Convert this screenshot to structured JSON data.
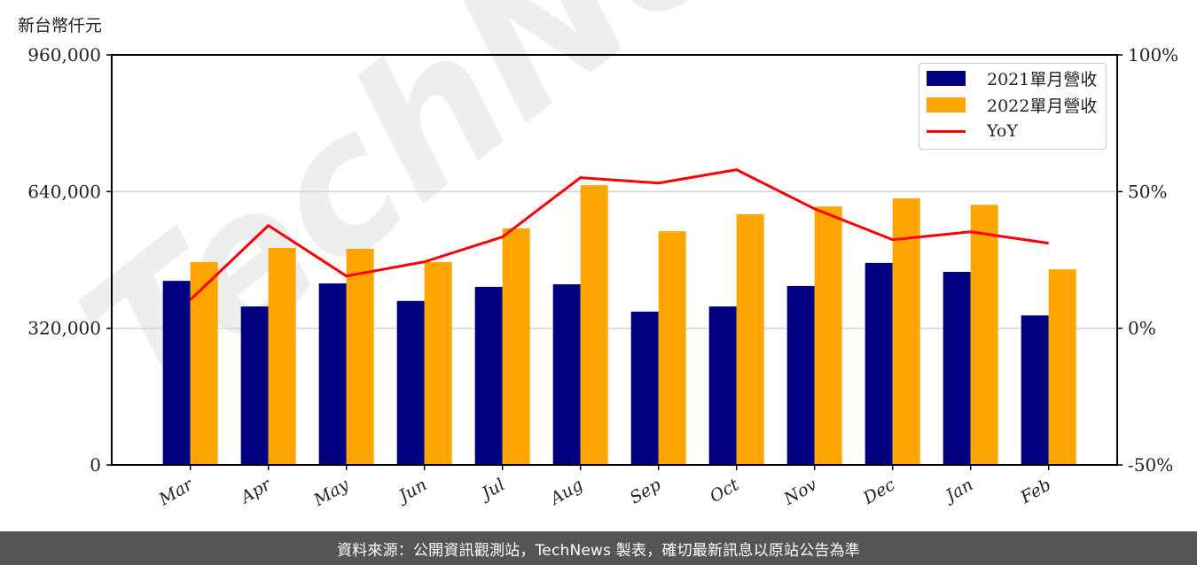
{
  "header": {
    "unit_label": "新台幣仟元"
  },
  "footer": {
    "source_text": "資料來源：公開資訊觀測站，TechNews 製表，確切最新訊息以原站公告為準"
  },
  "watermark": {
    "text": "TechNews"
  },
  "colors": {
    "series_2021": "#000080",
    "series_2022": "#ffa500",
    "yoy": "#ff0000",
    "grid": "#d3d3d3",
    "footer_bg": "#555555"
  },
  "legend": {
    "items": [
      {
        "label": "2021單月營收",
        "type": "bar",
        "color": "#000080"
      },
      {
        "label": "2022單月營收",
        "type": "bar",
        "color": "#ffa500"
      },
      {
        "label": "YoY",
        "type": "line",
        "color": "#ff0000"
      }
    ]
  },
  "chart_data": {
    "type": "bar",
    "title": "",
    "xlabel": "",
    "ylabel": "新台幣仟元",
    "y2label": "YoY",
    "categories": [
      "Mar",
      "Apr",
      "May",
      "Jun",
      "Jul",
      "Aug",
      "Sep",
      "Oct",
      "Nov",
      "Dec",
      "Jan",
      "Feb"
    ],
    "series": [
      {
        "name": "2021單月營收",
        "type": "bar",
        "axis": "left",
        "values": [
          431000,
          371000,
          425000,
          384000,
          417000,
          423000,
          359000,
          371000,
          419000,
          473000,
          452000,
          350000
        ]
      },
      {
        "name": "2022單月營收",
        "type": "bar",
        "axis": "left",
        "values": [
          475000,
          508000,
          506000,
          475000,
          554000,
          655000,
          547000,
          587000,
          605000,
          624000,
          609000,
          458000
        ]
      },
      {
        "name": "YoY",
        "type": "line",
        "axis": "right",
        "unit": "%",
        "values": [
          10.4,
          37.6,
          19.1,
          24.3,
          33.4,
          55.1,
          53.1,
          58.0,
          43.7,
          32.4,
          35.3,
          31.1
        ]
      }
    ],
    "ylim": [
      0,
      960000
    ],
    "y2lim": [
      -50,
      100
    ],
    "yticks": [
      0,
      320000,
      640000,
      960000
    ],
    "ytick_labels": [
      "0",
      "320,000",
      "640,000",
      "960,000"
    ],
    "y2ticks": [
      -50,
      0,
      50,
      100
    ],
    "y2tick_labels": [
      "-50%",
      "0%",
      "50%",
      "100%"
    ],
    "grid": "horizontal",
    "legend_position": "upper right"
  }
}
